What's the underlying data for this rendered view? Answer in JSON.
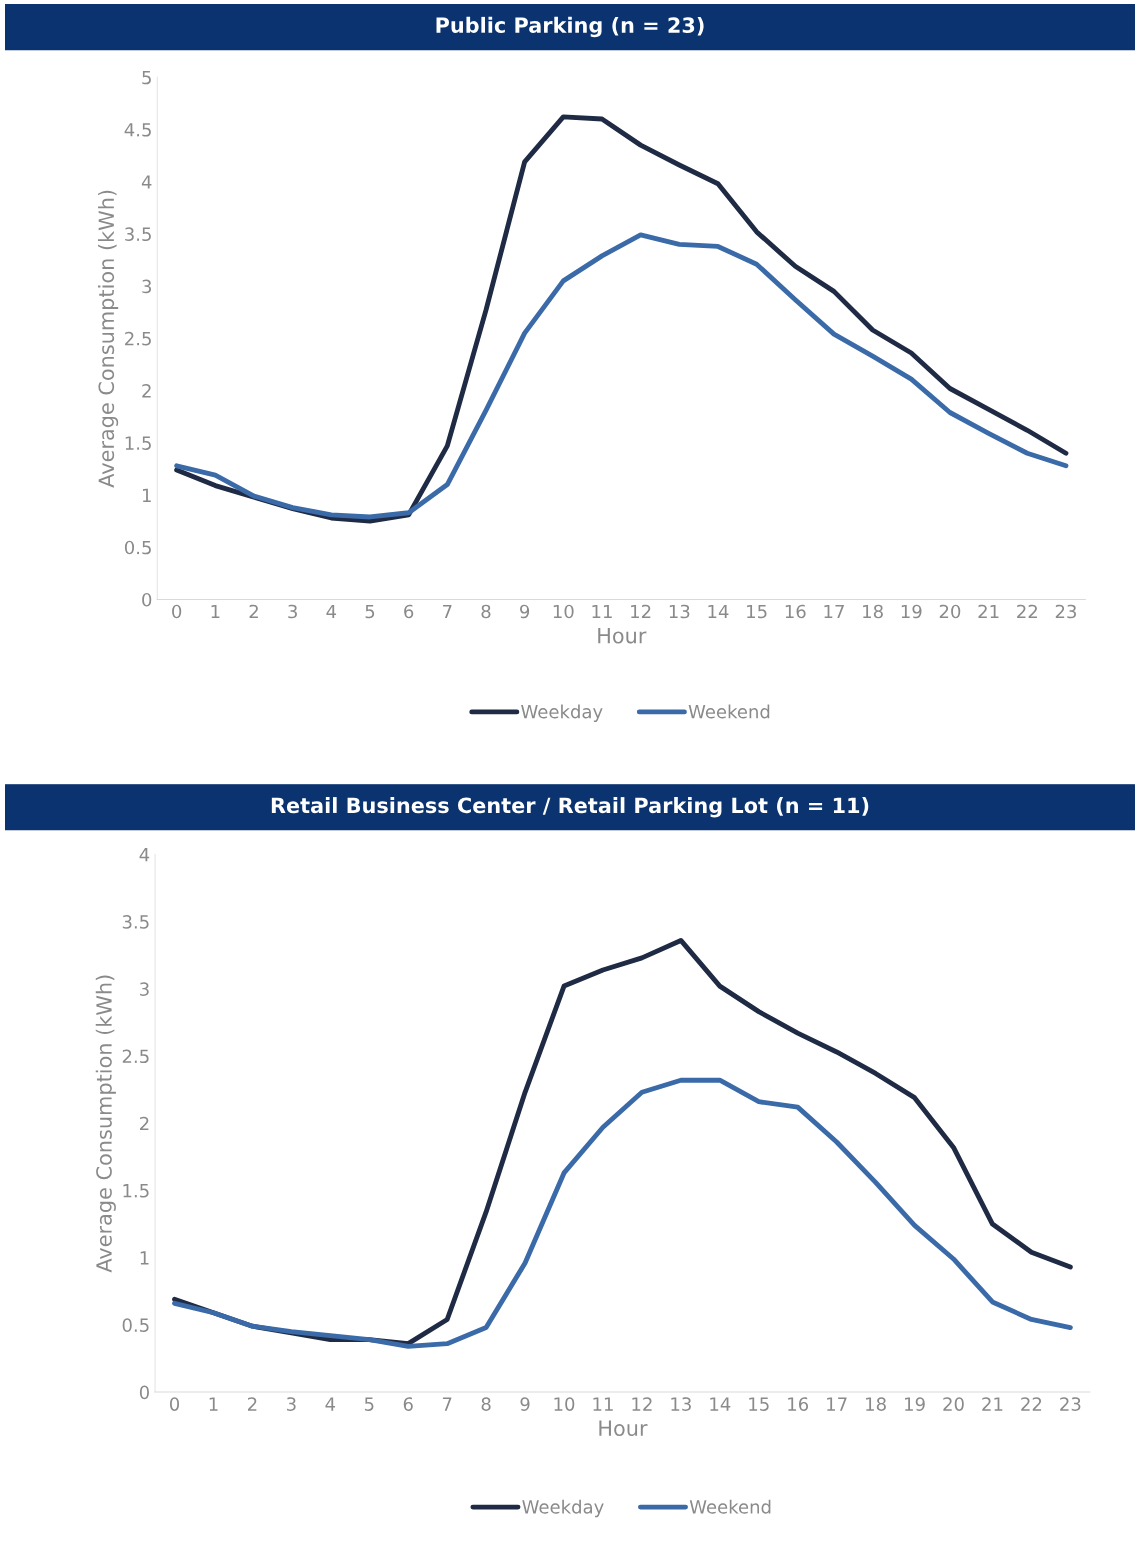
{
  "chart_data": [
    {
      "type": "line",
      "title": "Public Parking (n = 23)",
      "xlabel": "Hour",
      "ylabel": "Average Consumption (kWh)",
      "categories": [
        "0",
        "1",
        "2",
        "3",
        "4",
        "5",
        "6",
        "7",
        "8",
        "9",
        "10",
        "11",
        "12",
        "13",
        "14",
        "15",
        "16",
        "17",
        "18",
        "19",
        "20",
        "21",
        "22",
        "23"
      ],
      "series": [
        {
          "name": "Weekday",
          "color": "#1f2a44",
          "values": [
            1.24,
            1.09,
            0.98,
            0.87,
            0.78,
            0.75,
            0.81,
            1.47,
            2.77,
            4.19,
            4.62,
            4.6,
            4.35,
            4.16,
            3.98,
            3.52,
            3.19,
            2.95,
            2.58,
            2.36,
            2.02,
            1.82,
            1.62,
            1.4
          ]
        },
        {
          "name": "Weekend",
          "color": "#3a6aa8",
          "values": [
            1.28,
            1.19,
            0.99,
            0.88,
            0.81,
            0.79,
            0.83,
            1.1,
            1.81,
            2.55,
            3.05,
            3.29,
            3.49,
            3.4,
            3.38,
            3.21,
            2.87,
            2.54,
            2.33,
            2.11,
            1.79,
            1.59,
            1.4,
            1.28
          ]
        }
      ],
      "ylim": [
        0,
        5
      ],
      "yticks": [
        0,
        0.5,
        1,
        1.5,
        2,
        2.5,
        3,
        3.5,
        4,
        4.5,
        5
      ],
      "grid": false,
      "legend": "bottom",
      "marker": "none",
      "line_style": "solid"
    },
    {
      "type": "line",
      "title": "Retail Business Center / Retail Parking Lot (n = 11)",
      "xlabel": "Hour",
      "ylabel": "Average Consumption (kWh)",
      "categories": [
        "0",
        "1",
        "2",
        "3",
        "4",
        "5",
        "6",
        "7",
        "8",
        "9",
        "10",
        "11",
        "12",
        "13",
        "14",
        "15",
        "16",
        "17",
        "18",
        "19",
        "20",
        "21",
        "22",
        "23"
      ],
      "series": [
        {
          "name": "Weekday",
          "color": "#1f2a44",
          "values": [
            0.69,
            0.59,
            0.49,
            0.44,
            0.39,
            0.39,
            0.36,
            0.54,
            1.34,
            2.23,
            3.02,
            3.14,
            3.23,
            3.36,
            3.02,
            2.83,
            2.67,
            2.53,
            2.37,
            2.19,
            1.82,
            1.25,
            1.04,
            0.93
          ]
        },
        {
          "name": "Weekend",
          "color": "#3a6aa8",
          "values": [
            0.66,
            0.59,
            0.49,
            0.45,
            0.42,
            0.39,
            0.34,
            0.36,
            0.48,
            0.96,
            1.63,
            1.97,
            2.23,
            2.32,
            2.32,
            2.16,
            2.12,
            1.86,
            1.56,
            1.24,
            0.99,
            0.67,
            0.54,
            0.48
          ]
        }
      ],
      "ylim": [
        0,
        4
      ],
      "yticks": [
        0,
        0.5,
        1,
        1.5,
        2,
        2.5,
        3,
        3.5,
        4
      ],
      "grid": false,
      "legend": "bottom",
      "marker": "none",
      "line_style": "solid"
    }
  ]
}
